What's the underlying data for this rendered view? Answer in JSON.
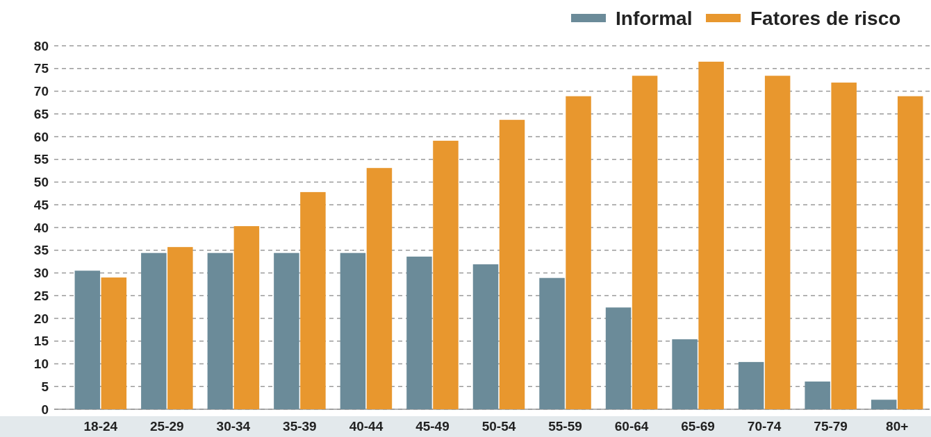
{
  "chart_data": {
    "type": "bar",
    "categories": [
      "18-24",
      "25-29",
      "30-34",
      "35-39",
      "40-44",
      "45-49",
      "50-54",
      "55-59",
      "60-64",
      "65-69",
      "70-74",
      "75-79",
      "80+"
    ],
    "series": [
      {
        "name": "Informal",
        "color": "#6b8b99",
        "values": [
          30.5,
          34.4,
          34.4,
          34.4,
          34.4,
          33.6,
          31.9,
          28.9,
          22.4,
          15.4,
          10.4,
          6.1,
          2.1
        ]
      },
      {
        "name": "Fatores de risco",
        "color": "#e8972e",
        "values": [
          29,
          35.7,
          40.3,
          47.8,
          53.1,
          59.1,
          63.7,
          68.9,
          73.4,
          76.5,
          73.4,
          71.9,
          68.9
        ]
      }
    ],
    "ylim": [
      0,
      80
    ],
    "yticks": [
      0,
      5,
      10,
      15,
      20,
      25,
      30,
      35,
      40,
      45,
      50,
      55,
      60,
      65,
      70,
      75,
      80
    ],
    "grid": "y",
    "legend": "top right"
  }
}
